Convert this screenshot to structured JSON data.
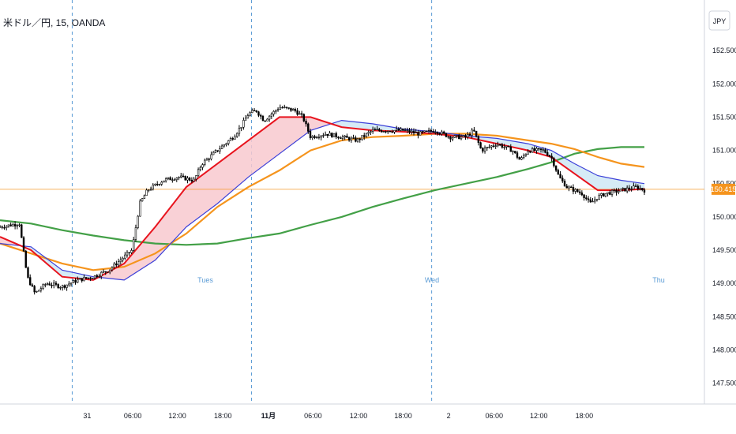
{
  "chart_data": {
    "type": "candlestick",
    "title": "米ドル／円, 15, OANDA",
    "currency": "JPY",
    "y_axis": {
      "ylim": [
        147.4,
        153.0
      ],
      "ticks": [
        "152.500",
        "152.000",
        "151.500",
        "151.000",
        "150.500",
        "150.000",
        "149.500",
        "149.000",
        "148.500",
        "148.000",
        "147.500"
      ]
    },
    "x_axis": {
      "ticks": [
        "31",
        "06:00",
        "12:00",
        "18:00",
        "11月",
        "06:00",
        "12:00",
        "18:00",
        "2",
        "06:00",
        "12:00",
        "18:00"
      ],
      "bold_ticks": [
        "11月"
      ]
    },
    "session_labels": [
      "Tues",
      "Wed",
      "Thu"
    ],
    "last_price": "150.415",
    "colors": {
      "ema_fast": "#e8141e",
      "ema_slow": "#3b3fd8",
      "ma_mid": "#f5941d",
      "ma_long": "#43a047",
      "fill_bull": "#f8c9cf",
      "fill_bear": "#cfe8f5",
      "price_line": "#f5941d",
      "session_line": "#5a9bd5",
      "candles": "#000000"
    },
    "price_path": [
      [
        0,
        149.85
      ],
      [
        2.5,
        149.9
      ],
      [
        3.5,
        149.1
      ],
      [
        4.5,
        148.85
      ],
      [
        6,
        149.0
      ],
      [
        8,
        148.95
      ],
      [
        10,
        149.05
      ],
      [
        12,
        149.1
      ],
      [
        14,
        149.2
      ],
      [
        16,
        149.4
      ],
      [
        17,
        149.5
      ],
      [
        18,
        150.2
      ],
      [
        19,
        150.4
      ],
      [
        21,
        150.55
      ],
      [
        23,
        150.6
      ],
      [
        25,
        150.55
      ],
      [
        26,
        150.8
      ],
      [
        28,
        151.0
      ],
      [
        30,
        151.2
      ],
      [
        31,
        151.35
      ],
      [
        32,
        151.55
      ],
      [
        33,
        151.6
      ],
      [
        34,
        151.45
      ],
      [
        35,
        151.55
      ],
      [
        36,
        151.65
      ],
      [
        38,
        151.6
      ],
      [
        39,
        151.5
      ],
      [
        40,
        151.2
      ],
      [
        42,
        151.25
      ],
      [
        44,
        151.2
      ],
      [
        46,
        151.15
      ],
      [
        48,
        151.3
      ],
      [
        50,
        151.3
      ],
      [
        52,
        151.3
      ],
      [
        54,
        151.25
      ],
      [
        56,
        151.3
      ],
      [
        58,
        151.2
      ],
      [
        60,
        151.2
      ],
      [
        61,
        151.3
      ],
      [
        62,
        151.0
      ],
      [
        63,
        151.05
      ],
      [
        64,
        151.1
      ],
      [
        66,
        151.0
      ],
      [
        67,
        150.85
      ],
      [
        68,
        151.0
      ],
      [
        70,
        151.0
      ],
      [
        71,
        150.9
      ],
      [
        72,
        150.6
      ],
      [
        73,
        150.45
      ],
      [
        75,
        150.35
      ],
      [
        76,
        150.2
      ],
      [
        77,
        150.3
      ],
      [
        78,
        150.35
      ],
      [
        80,
        150.4
      ],
      [
        82,
        150.45
      ],
      [
        83,
        150.4
      ]
    ],
    "indicators": {
      "ema_fast": [
        [
          0,
          149.7
        ],
        [
          4,
          149.5
        ],
        [
          8,
          149.1
        ],
        [
          12,
          149.05
        ],
        [
          16,
          149.3
        ],
        [
          20,
          149.85
        ],
        [
          24,
          150.45
        ],
        [
          28,
          150.8
        ],
        [
          32,
          151.15
        ],
        [
          36,
          151.5
        ],
        [
          40,
          151.5
        ],
        [
          44,
          151.35
        ],
        [
          48,
          151.3
        ],
        [
          52,
          151.28
        ],
        [
          56,
          151.25
        ],
        [
          60,
          151.2
        ],
        [
          64,
          151.1
        ],
        [
          68,
          151.0
        ],
        [
          71,
          150.9
        ],
        [
          74,
          150.65
        ],
        [
          77,
          150.4
        ],
        [
          80,
          150.4
        ],
        [
          83,
          150.42
        ]
      ],
      "ema_slow": [
        [
          0,
          149.6
        ],
        [
          4,
          149.55
        ],
        [
          8,
          149.2
        ],
        [
          12,
          149.1
        ],
        [
          16,
          149.05
        ],
        [
          20,
          149.35
        ],
        [
          24,
          149.85
        ],
        [
          28,
          150.2
        ],
        [
          32,
          150.6
        ],
        [
          36,
          150.95
        ],
        [
          40,
          151.3
        ],
        [
          44,
          151.45
        ],
        [
          48,
          151.4
        ],
        [
          52,
          151.32
        ],
        [
          56,
          151.28
        ],
        [
          60,
          151.22
        ],
        [
          64,
          151.18
        ],
        [
          68,
          151.1
        ],
        [
          71,
          151.0
        ],
        [
          74,
          150.8
        ],
        [
          77,
          150.62
        ],
        [
          80,
          150.55
        ],
        [
          83,
          150.5
        ]
      ],
      "ma_mid": [
        [
          0,
          149.6
        ],
        [
          4,
          149.45
        ],
        [
          8,
          149.3
        ],
        [
          12,
          149.2
        ],
        [
          16,
          149.25
        ],
        [
          20,
          149.45
        ],
        [
          24,
          149.75
        ],
        [
          28,
          150.15
        ],
        [
          32,
          150.45
        ],
        [
          36,
          150.7
        ],
        [
          40,
          151.0
        ],
        [
          44,
          151.15
        ],
        [
          48,
          151.2
        ],
        [
          52,
          151.22
        ],
        [
          56,
          151.25
        ],
        [
          60,
          151.25
        ],
        [
          64,
          151.22
        ],
        [
          68,
          151.15
        ],
        [
          71,
          151.1
        ],
        [
          74,
          151.02
        ],
        [
          77,
          150.9
        ],
        [
          80,
          150.8
        ],
        [
          83,
          150.75
        ]
      ],
      "ma_long": [
        [
          0,
          149.95
        ],
        [
          4,
          149.9
        ],
        [
          8,
          149.8
        ],
        [
          12,
          149.72
        ],
        [
          16,
          149.65
        ],
        [
          20,
          149.6
        ],
        [
          24,
          149.58
        ],
        [
          28,
          149.6
        ],
        [
          32,
          149.68
        ],
        [
          36,
          149.75
        ],
        [
          40,
          149.88
        ],
        [
          44,
          150.0
        ],
        [
          48,
          150.15
        ],
        [
          52,
          150.28
        ],
        [
          56,
          150.4
        ],
        [
          60,
          150.5
        ],
        [
          64,
          150.6
        ],
        [
          68,
          150.72
        ],
        [
          71,
          150.82
        ],
        [
          74,
          150.95
        ],
        [
          77,
          151.02
        ],
        [
          80,
          151.05
        ],
        [
          83,
          151.05
        ]
      ]
    }
  }
}
